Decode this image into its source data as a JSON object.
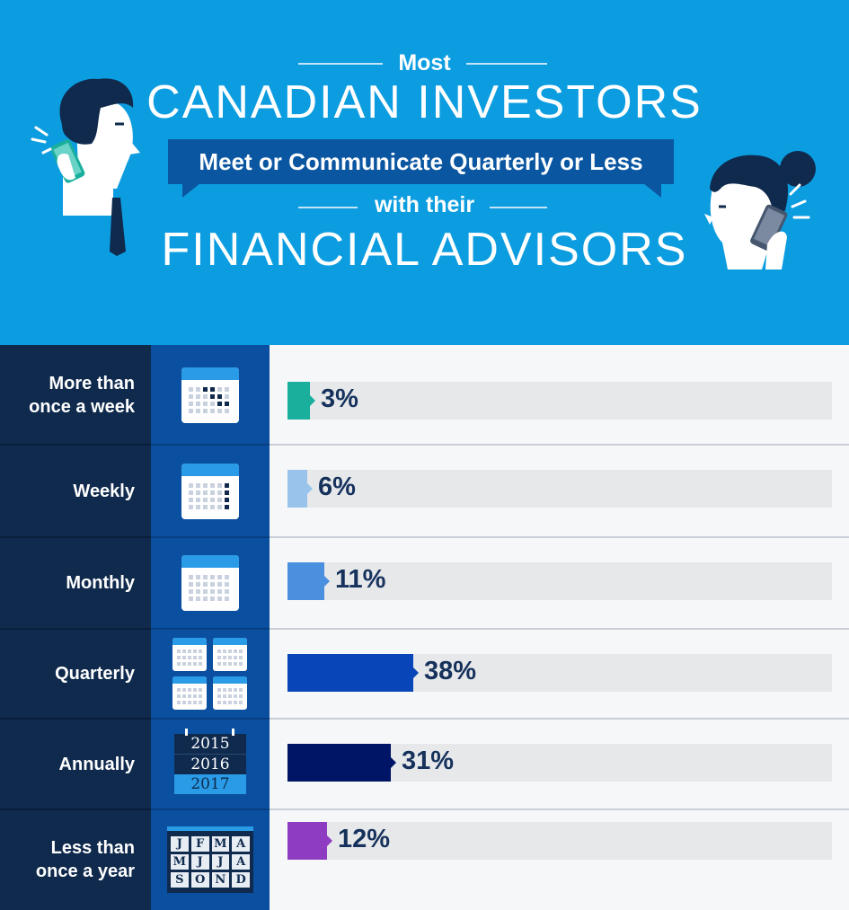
{
  "header": {
    "line1": "Most",
    "line2": "CANADIAN INVESTORS",
    "banner": "Meet or Communicate Quarterly or Less",
    "line3": "with their",
    "line4": "FINANCIAL ADVISORS"
  },
  "chart_data": {
    "type": "bar",
    "orientation": "horizontal",
    "categories": [
      "More than\nonce a week",
      "Weekly",
      "Monthly",
      "Quarterly",
      "Annually",
      "Less than\nonce a year"
    ],
    "values": [
      3,
      6,
      11,
      38,
      31,
      12
    ],
    "value_labels": [
      "3%",
      "6%",
      "11%",
      "38%",
      "31%",
      "12%"
    ],
    "colors": [
      "#1aaf9d",
      "#9ac3ec",
      "#4b90de",
      "#0745b8",
      "#001565",
      "#8e3cc2"
    ],
    "xlim": [
      0,
      100
    ],
    "icon_names": [
      "calendar-multiple-days-icon",
      "calendar-weekly-icon",
      "calendar-monthly-icon",
      "quarterly-calendars-icon",
      "yearly-calendar-icon",
      "month-letters-icon"
    ]
  },
  "icons": {
    "years": [
      "2015",
      "2016",
      "2017"
    ],
    "months": [
      "J",
      "F",
      "M",
      "A",
      "M",
      "J",
      "J",
      "A",
      "S",
      "O",
      "N",
      "D"
    ]
  }
}
